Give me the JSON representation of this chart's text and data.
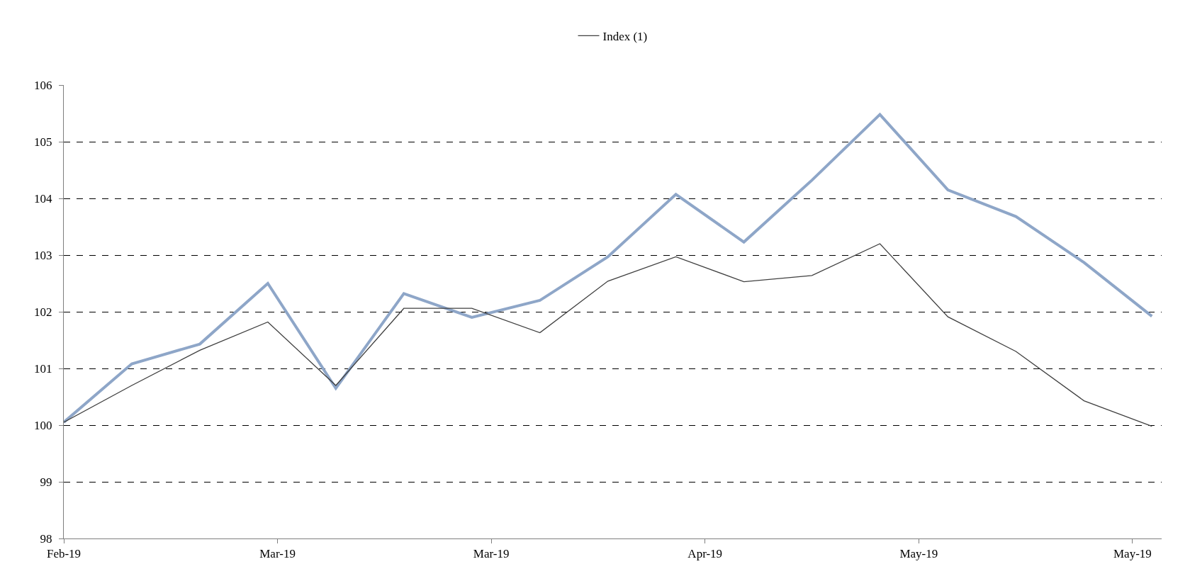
{
  "chart_data": {
    "type": "line",
    "x": [
      "2019-02-08",
      "2019-02-15",
      "2019-02-22",
      "2019-03-01",
      "2019-03-08",
      "2019-03-15",
      "2019-03-22",
      "2019-03-29",
      "2019-04-05",
      "2019-04-12",
      "2019-04-19",
      "2019-04-26",
      "2019-05-03",
      "2019-05-10",
      "2019-05-17",
      "2019-05-24",
      "2019-05-31"
    ],
    "series": [
      {
        "color": "#8ea6c8",
        "values": [
          100.05,
          101.08,
          101.43,
          102.5,
          100.65,
          102.32,
          101.9,
          102.2,
          102.97,
          104.07,
          103.23,
          104.32,
          105.48,
          104.15,
          103.68,
          102.87,
          101.92
        ]
      },
      {
        "name": "Index (1)",
        "color": "#404040",
        "values": [
          100.05,
          100.7,
          101.32,
          101.82,
          100.7,
          102.06,
          102.06,
          101.63,
          102.54,
          102.97,
          102.53,
          102.64,
          103.2,
          101.91,
          101.3,
          100.43,
          99.98
        ]
      }
    ],
    "xlim": [
      "2019-02-08",
      "2019-06-01"
    ],
    "xticks": [
      {
        "value": "2019-02-08",
        "label": "Feb-19"
      },
      {
        "value": "2019-03-02",
        "label": "Mar-19"
      },
      {
        "value": "2019-03-24",
        "label": "Mar-19"
      },
      {
        "value": "2019-04-15",
        "label": "Apr-19"
      },
      {
        "value": "2019-05-07",
        "label": "May-19"
      },
      {
        "value": "2019-05-29",
        "label": "May-19"
      }
    ],
    "ylim": [
      98,
      106
    ],
    "yticks": [
      98,
      99,
      100,
      101,
      102,
      103,
      104,
      105,
      106
    ],
    "grid": "y",
    "legend": "top",
    "marker": "none",
    "line_style": "solid"
  }
}
